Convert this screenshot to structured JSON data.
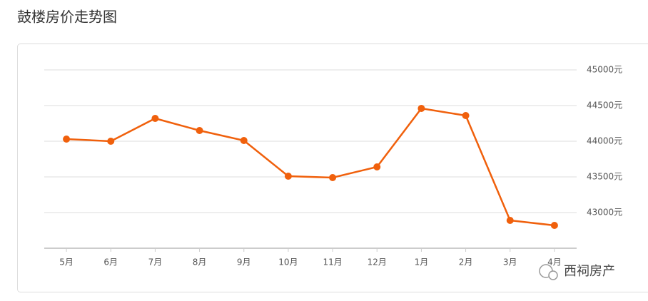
{
  "chart_data": {
    "type": "line",
    "title": "鼓楼房价走势图",
    "categories": [
      "5月",
      "6月",
      "7月",
      "8月",
      "9月",
      "10月",
      "11月",
      "12月",
      "1月",
      "2月",
      "3月",
      "4月"
    ],
    "series": [
      {
        "name": "房价",
        "color": "#f0600c",
        "values": [
          44030,
          44000,
          44320,
          44150,
          44010,
          43510,
          43490,
          43640,
          44460,
          44360,
          42890,
          42820
        ]
      }
    ],
    "ylim": [
      42500,
      45000
    ],
    "yticks": [
      {
        "value": 43000,
        "label": "43000元"
      },
      {
        "value": 43500,
        "label": "43500元"
      },
      {
        "value": 44000,
        "label": "44000元"
      },
      {
        "value": 44500,
        "label": "44500元"
      },
      {
        "value": 45000,
        "label": "45000元"
      }
    ],
    "grid": true,
    "watermark": "西祠房产"
  }
}
